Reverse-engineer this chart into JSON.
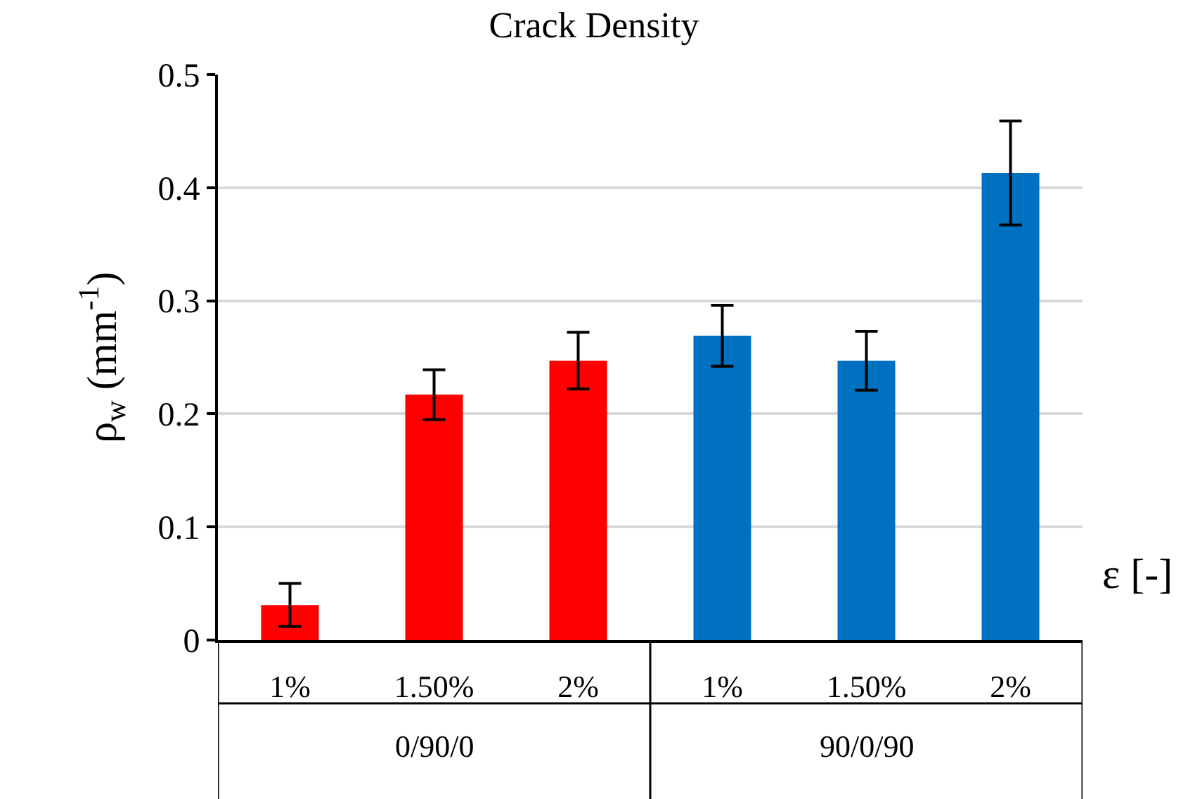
{
  "chart_data": {
    "type": "bar",
    "title": "Crack Density",
    "xlabel": "ε [-]",
    "ylabel": "ρ$_{w}$ (mm$^{-1}$)",
    "categories": [
      "1%",
      "1.50%",
      "2%",
      "1%",
      "1.50%",
      "2%"
    ],
    "values": [
      0.031,
      0.217,
      0.247,
      0.269,
      0.247,
      0.413
    ],
    "errors": [
      0.019,
      0.022,
      0.025,
      0.027,
      0.026,
      0.046
    ],
    "colors": [
      "#ff0000",
      "#ff0000",
      "#ff0000",
      "#0070c0",
      "#0070c0",
      "#0070c0"
    ],
    "annotations": [
      "0/90/0",
      "90/0/90"
    ],
    "ylim": [
      0,
      0.5
    ],
    "yticks": [
      0,
      0.1,
      0.2,
      0.3,
      0.4,
      0.5
    ],
    "grid": "y"
  }
}
